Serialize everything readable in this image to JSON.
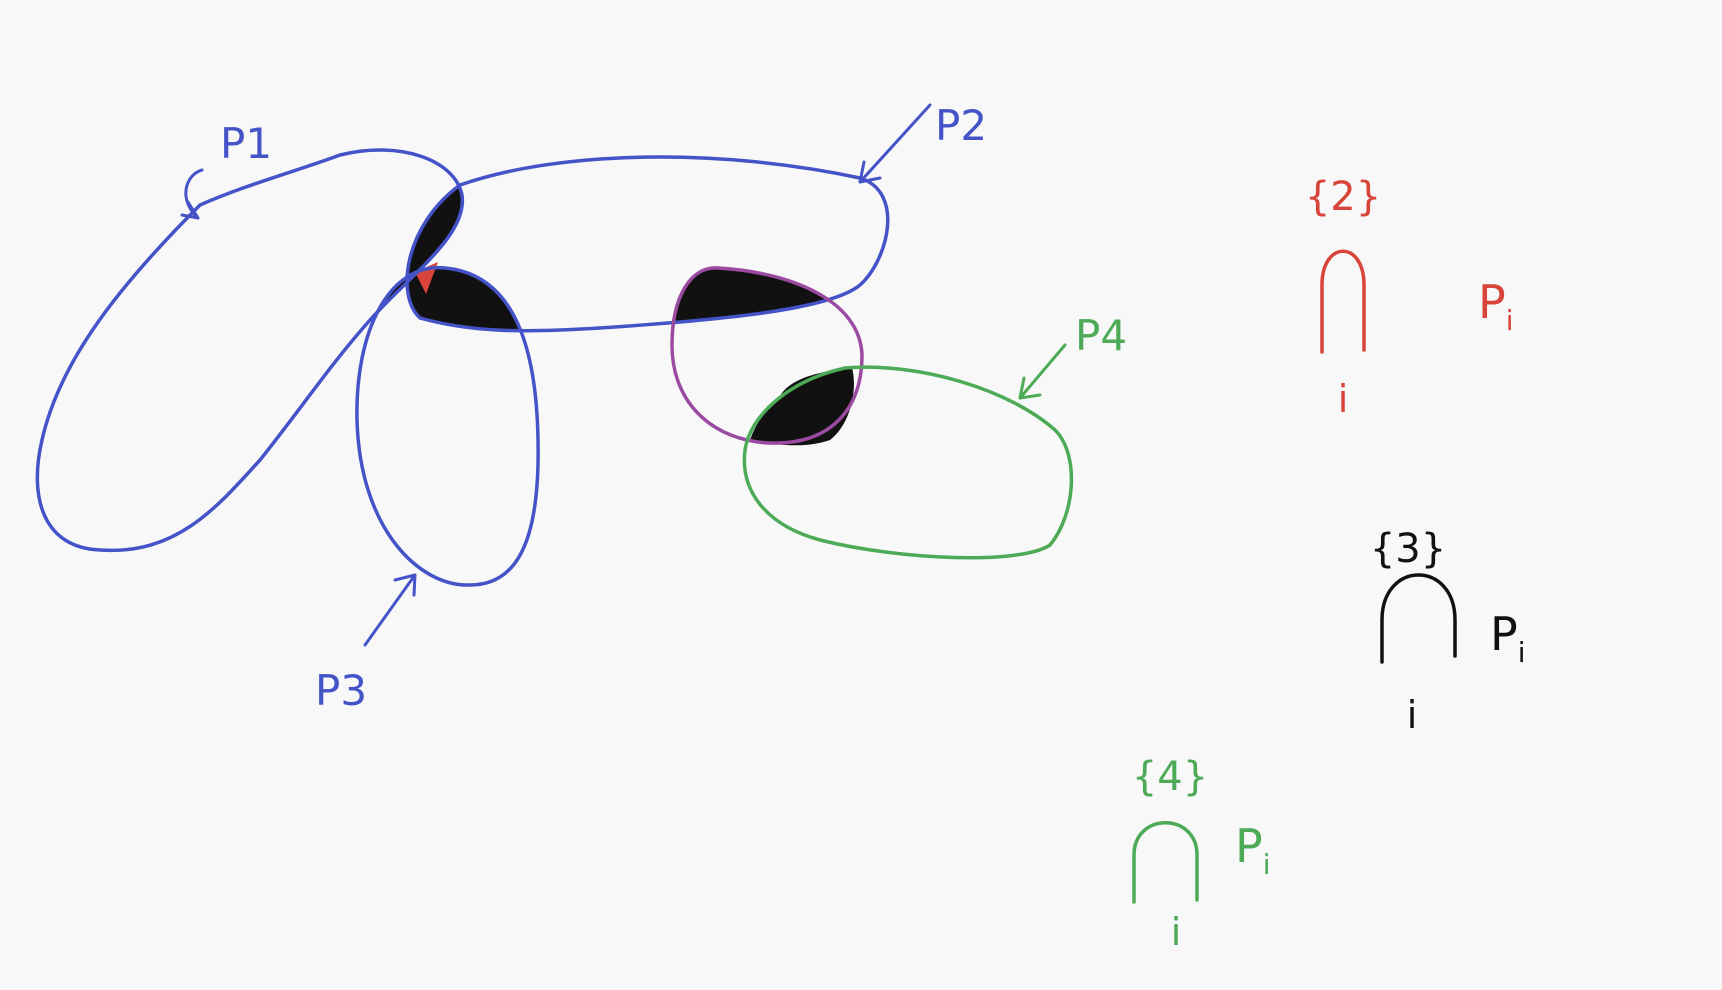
{
  "colors": {
    "background": "#f8f8f8",
    "blue": "#4453c8",
    "green": "#4daa57",
    "purple": "#9b4aa2",
    "red": "#d8433a",
    "black": "#111111"
  },
  "sets": {
    "p1": "P1",
    "p2": "P2",
    "p3": "P3",
    "p4": "P4"
  },
  "formulas": {
    "red": {
      "index_set": "{2}",
      "operand": "P",
      "operand_sub": "i",
      "bound": "i"
    },
    "black": {
      "index_set": "{3}",
      "operand": "P",
      "operand_sub": "i",
      "bound": "i"
    },
    "green": {
      "index_set": "{4}",
      "operand": "P",
      "operand_sub": "i",
      "bound": "i"
    }
  }
}
